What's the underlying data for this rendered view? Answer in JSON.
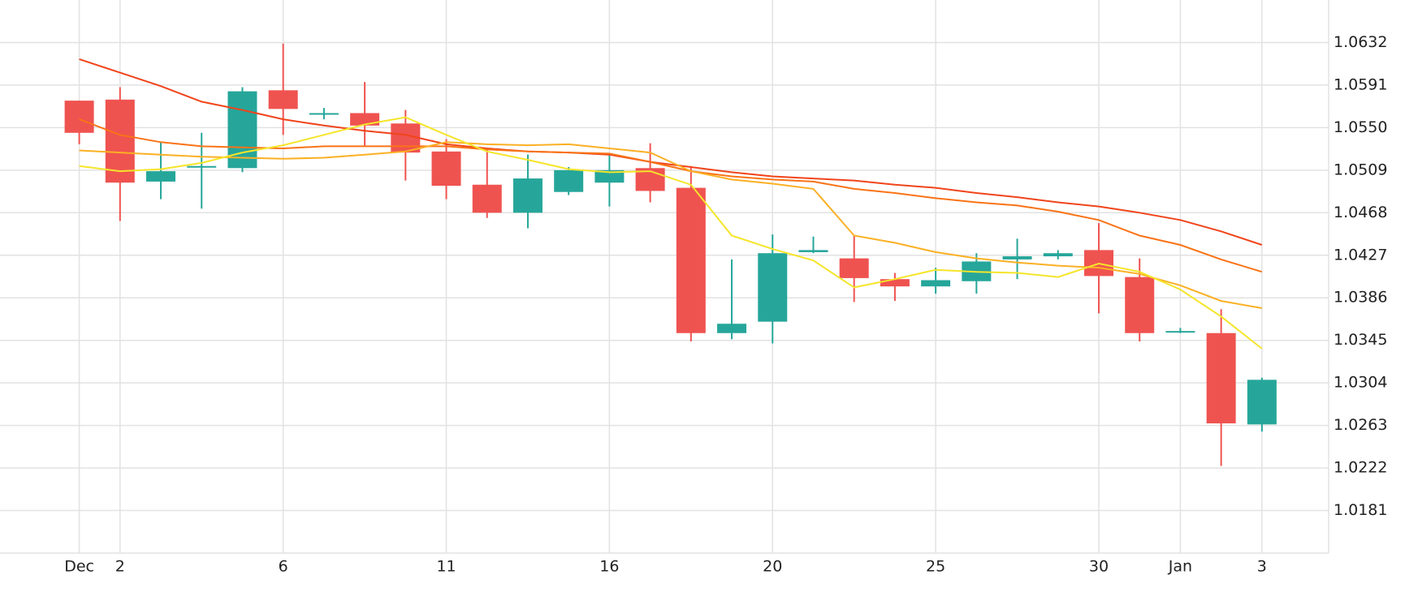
{
  "chart_data": {
    "type": "candlestick",
    "categories": [
      "Dec",
      "2",
      null,
      null,
      null,
      "6",
      null,
      null,
      null,
      "11",
      null,
      null,
      null,
      "16",
      null,
      null,
      null,
      "20",
      null,
      null,
      null,
      "25",
      null,
      null,
      null,
      "30",
      null,
      "Jan",
      null,
      "3"
    ],
    "open": [
      1.0576,
      1.0577,
      1.0498,
      1.0512,
      1.0511,
      1.0586,
      1.0563,
      1.0564,
      1.0554,
      1.0527,
      1.0495,
      1.0468,
      1.0488,
      1.0497,
      1.0511,
      1.0492,
      1.0352,
      1.0363,
      1.043,
      1.0424,
      1.0404,
      1.0397,
      1.0402,
      1.0423,
      1.0426,
      1.0432,
      1.0406,
      1.0353,
      1.0352,
      1.0264
    ],
    "high": [
      1.0576,
      1.0589,
      1.0536,
      1.0545,
      1.0589,
      1.0631,
      1.0569,
      1.0594,
      1.0567,
      1.0539,
      1.053,
      1.0524,
      1.0512,
      1.0524,
      1.0535,
      1.0513,
      1.0423,
      1.0447,
      1.0445,
      1.0446,
      1.041,
      1.0415,
      1.0429,
      1.0443,
      1.0432,
      1.0458,
      1.0424,
      1.0357,
      1.0375,
      1.0309
    ],
    "low": [
      1.0534,
      1.046,
      1.0481,
      1.0472,
      1.0507,
      1.0543,
      1.0558,
      1.0532,
      1.0499,
      1.0481,
      1.0463,
      1.0453,
      1.0485,
      1.0474,
      1.0478,
      1.0344,
      1.0346,
      1.0342,
      1.0429,
      1.0382,
      1.0383,
      1.039,
      1.039,
      1.0404,
      1.0423,
      1.0371,
      1.0344,
      1.0352,
      1.0224,
      1.0257
    ],
    "close": [
      1.0545,
      1.0497,
      1.0508,
      1.0513,
      1.0585,
      1.0568,
      1.0564,
      1.0552,
      1.0526,
      1.0494,
      1.0468,
      1.0501,
      1.0509,
      1.0509,
      1.0489,
      1.0352,
      1.0361,
      1.0429,
      1.0432,
      1.0405,
      1.0397,
      1.0403,
      1.0421,
      1.0426,
      1.0429,
      1.0407,
      1.0352,
      1.0354,
      1.0265,
      1.0307
    ],
    "up_color": "#26a69a",
    "down_color": "#ef5350",
    "lines": [
      {
        "color": "#f0441a",
        "values": [
          1.0616,
          1.0603,
          1.059,
          1.0575,
          1.0567,
          1.0558,
          1.0552,
          1.0547,
          1.0543,
          1.0534,
          1.053,
          1.0527,
          1.0526,
          1.0524,
          1.0517,
          1.0512,
          1.0507,
          1.0503,
          1.0501,
          1.0499,
          1.0495,
          1.0492,
          1.0487,
          1.0483,
          1.0478,
          1.0474,
          1.0468,
          1.0461,
          1.045,
          1.0437
        ]
      },
      {
        "color": "#f97316",
        "values": [
          1.0558,
          1.0543,
          1.0536,
          1.0532,
          1.0531,
          1.053,
          1.0532,
          1.0532,
          1.0532,
          1.0532,
          1.0529,
          1.0527,
          1.0526,
          1.0525,
          1.0517,
          1.0508,
          1.0503,
          1.05,
          1.0498,
          1.0491,
          1.0487,
          1.0482,
          1.0478,
          1.0475,
          1.0469,
          1.0461,
          1.0446,
          1.0437,
          1.0423,
          1.0411
        ]
      },
      {
        "color": "#fbb024",
        "values": [
          1.0528,
          1.0526,
          1.0524,
          1.0522,
          1.0521,
          1.052,
          1.0521,
          1.0524,
          1.0527,
          1.0536,
          1.0534,
          1.0533,
          1.0534,
          1.053,
          1.0526,
          1.0508,
          1.05,
          1.0496,
          1.0491,
          1.0446,
          1.0439,
          1.043,
          1.0424,
          1.042,
          1.0417,
          1.0415,
          1.0409,
          1.0398,
          1.0383,
          1.0376
        ]
      },
      {
        "color": "#f5e52a",
        "values": [
          1.0513,
          1.0508,
          1.051,
          1.0516,
          1.0526,
          1.0533,
          1.0543,
          1.0553,
          1.056,
          1.0543,
          1.0527,
          1.0519,
          1.051,
          1.0507,
          1.0508,
          1.0495,
          1.0446,
          1.0433,
          1.0422,
          1.0396,
          1.0404,
          1.0413,
          1.0411,
          1.041,
          1.0406,
          1.0419,
          1.0411,
          1.0394,
          1.0368,
          1.0337
        ]
      }
    ],
    "ylim": [
      1.014,
      1.0673
    ],
    "yticks": [
      1.0181,
      1.0222,
      1.0263,
      1.0304,
      1.0345,
      1.0386,
      1.0427,
      1.0468,
      1.0509,
      {
        "value": 1.055,
        "label": "1.0550"
      },
      1.0591,
      1.0632
    ],
    "grid": true
  }
}
